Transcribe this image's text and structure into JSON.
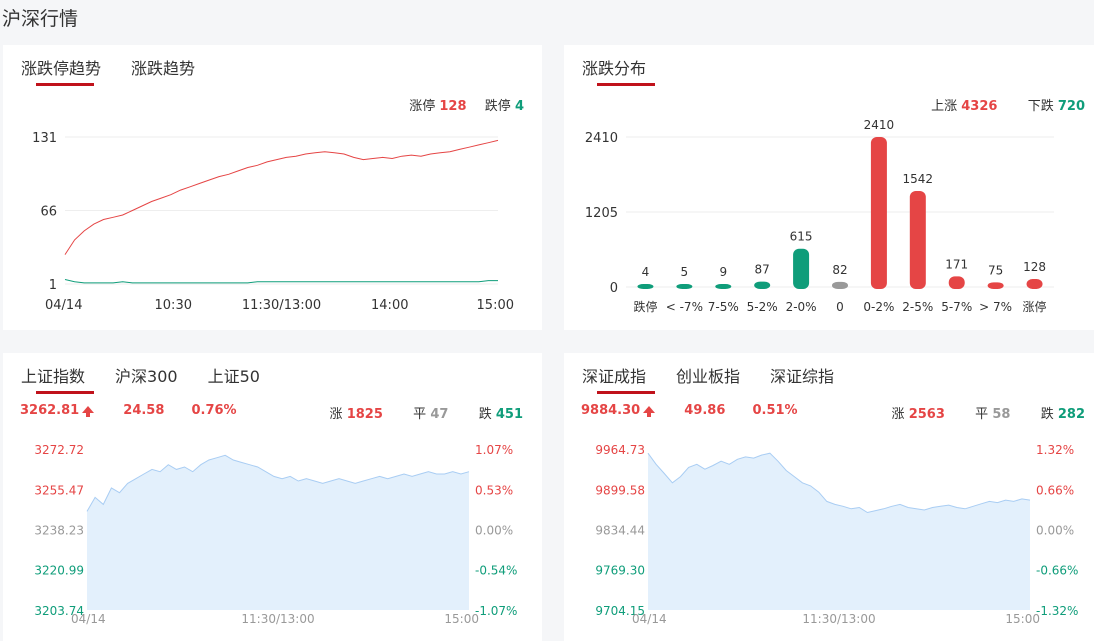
{
  "page_title": "沪深行情",
  "colors": {
    "up": "#e54545",
    "down": "#0f9d7a",
    "flat": "#999999",
    "accent": "#c0121b",
    "area_fill": "#e3f0fc",
    "area_line": "#a9cdf3"
  },
  "limit_panel": {
    "tabs": [
      "涨跌停趋势",
      "涨跌趋势"
    ],
    "limit_up_label": "涨停",
    "limit_up_value": "128",
    "limit_down_label": "跌停",
    "limit_down_value": "4",
    "chart_data": {
      "type": "line",
      "ylim": [
        1,
        131
      ],
      "y_ticks": [
        "131",
        "66",
        "1"
      ],
      "x_ticks": [
        "04/14",
        "10:30",
        "11:30/13:00",
        "14:00",
        "15:00"
      ],
      "series": [
        {
          "name": "涨停",
          "color": "#e54545",
          "values": [
            27,
            40,
            48,
            54,
            58,
            60,
            62,
            66,
            70,
            74,
            77,
            80,
            84,
            87,
            90,
            93,
            96,
            98,
            101,
            104,
            106,
            109,
            111,
            113,
            114,
            116,
            117,
            118,
            117,
            116,
            113,
            111,
            112,
            113,
            112,
            114,
            115,
            114,
            116,
            117,
            118,
            120,
            122,
            124,
            126,
            128
          ]
        },
        {
          "name": "跌停",
          "color": "#0f9d7a",
          "values": [
            5,
            3,
            2,
            2,
            2,
            2,
            3,
            2,
            2,
            2,
            2,
            2,
            2,
            2,
            2,
            2,
            2,
            2,
            2,
            2,
            3,
            3,
            3,
            3,
            3,
            3,
            3,
            3,
            3,
            3,
            3,
            3,
            3,
            3,
            3,
            3,
            3,
            3,
            3,
            3,
            3,
            3,
            3,
            3,
            4,
            4
          ]
        }
      ]
    }
  },
  "dist_panel": {
    "tabs": [
      "涨跌分布"
    ],
    "up_label": "上涨",
    "up_value": "4326",
    "down_label": "下跌",
    "down_value": "720",
    "chart_data": {
      "type": "bar",
      "ylim": [
        0,
        2410
      ],
      "y_ticks": [
        "2410",
        "1205",
        "0"
      ],
      "categories": [
        "跌停",
        "< -7%",
        "7-5%",
        "5-2%",
        "2-0%",
        "0",
        "0-2%",
        "2-5%",
        "5-7%",
        "> 7%",
        "涨停"
      ],
      "values": [
        4,
        5,
        9,
        87,
        615,
        82,
        2410,
        1542,
        171,
        75,
        128
      ],
      "labels": [
        "4",
        "5",
        "9",
        "87",
        "615",
        "82",
        "2410",
        "1542",
        "171",
        "75",
        "128"
      ],
      "colors": [
        "#0f9d7a",
        "#0f9d7a",
        "#0f9d7a",
        "#0f9d7a",
        "#0f9d7a",
        "#999999",
        "#e54545",
        "#e54545",
        "#e54545",
        "#e54545",
        "#e54545"
      ]
    }
  },
  "sh_panel": {
    "tabs": [
      "上证指数",
      "沪深300",
      "上证50"
    ],
    "price": "3262.81",
    "change": "24.58",
    "pct": "0.76%",
    "up_label": "涨",
    "up_value": "1825",
    "flat_label": "平",
    "flat_value": "47",
    "down_label": "跌",
    "down_value": "451",
    "chart_data": {
      "type": "area",
      "ylim": [
        3203.74,
        3272.72
      ],
      "y_ticks": [
        "3272.72",
        "3255.47",
        "3238.23",
        "3220.99",
        "3203.74"
      ],
      "y_pct_ticks": [
        "1.07%",
        "0.53%",
        "0.00%",
        "-0.54%",
        "-1.07%"
      ],
      "x_ticks": [
        "04/14",
        "11:30/13:00",
        "15:00"
      ],
      "values": [
        3246,
        3252,
        3249,
        3256,
        3254,
        3258,
        3260,
        3262,
        3264,
        3263,
        3266,
        3264,
        3265,
        3263,
        3266,
        3268,
        3269,
        3270,
        3268,
        3267,
        3266,
        3265,
        3263,
        3261,
        3260,
        3261,
        3259,
        3260,
        3259,
        3258,
        3259,
        3260,
        3259,
        3258,
        3259,
        3260,
        3261,
        3260,
        3261,
        3262,
        3261,
        3262,
        3263,
        3262,
        3262,
        3263,
        3262,
        3263
      ]
    }
  },
  "sz_panel": {
    "tabs": [
      "深证成指",
      "创业板指",
      "深证综指"
    ],
    "price": "9884.30",
    "change": "49.86",
    "pct": "0.51%",
    "up_label": "涨",
    "up_value": "2563",
    "flat_label": "平",
    "flat_value": "58",
    "down_label": "跌",
    "down_value": "282",
    "chart_data": {
      "type": "area",
      "ylim": [
        9704.15,
        9964.73
      ],
      "y_ticks": [
        "9964.73",
        "9899.58",
        "9834.44",
        "9769.30",
        "9704.15"
      ],
      "y_pct_ticks": [
        "1.32%",
        "0.66%",
        "0.00%",
        "-0.66%",
        "-1.32%"
      ],
      "x_ticks": [
        "04/14",
        "11:30/13:00",
        "15:00"
      ],
      "values": [
        9958,
        9940,
        9925,
        9910,
        9920,
        9935,
        9940,
        9932,
        9938,
        9945,
        9940,
        9948,
        9952,
        9950,
        9955,
        9958,
        9945,
        9930,
        9920,
        9910,
        9905,
        9895,
        9880,
        9875,
        9872,
        9868,
        9870,
        9862,
        9865,
        9868,
        9872,
        9875,
        9870,
        9868,
        9866,
        9870,
        9872,
        9874,
        9870,
        9868,
        9872,
        9876,
        9880,
        9878,
        9882,
        9880,
        9884,
        9882
      ]
    }
  }
}
